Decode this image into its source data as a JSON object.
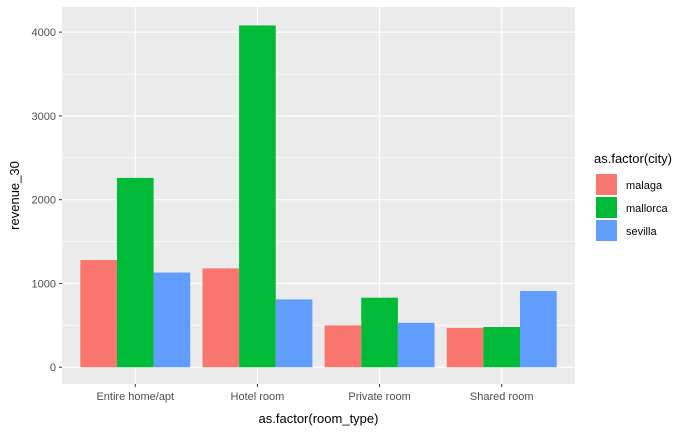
{
  "chart_data": {
    "type": "bar",
    "xlabel": "as.factor(room_type)",
    "ylabel": "revenue_30",
    "categories": [
      "Entire home/apt",
      "Hotel room",
      "Private room",
      "Shared room"
    ],
    "series": [
      {
        "name": "malaga",
        "color": "#F8766D",
        "values": [
          1280,
          1180,
          500,
          470
        ]
      },
      {
        "name": "mallorca",
        "color": "#00BA38",
        "values": [
          2260,
          4080,
          830,
          480
        ]
      },
      {
        "name": "sevilla",
        "color": "#619CFF",
        "values": [
          1130,
          810,
          530,
          910
        ]
      }
    ],
    "ylim": [
      -200,
      4300
    ],
    "yticks": [
      0,
      1000,
      2000,
      3000,
      4000
    ],
    "yminor": [
      500,
      1500,
      2500,
      3500
    ],
    "legend": {
      "title": "as.factor(city)",
      "placement": "right"
    },
    "grid": true,
    "panel_background": "#EBEBEB",
    "grid_color": "#FFFFFF"
  }
}
